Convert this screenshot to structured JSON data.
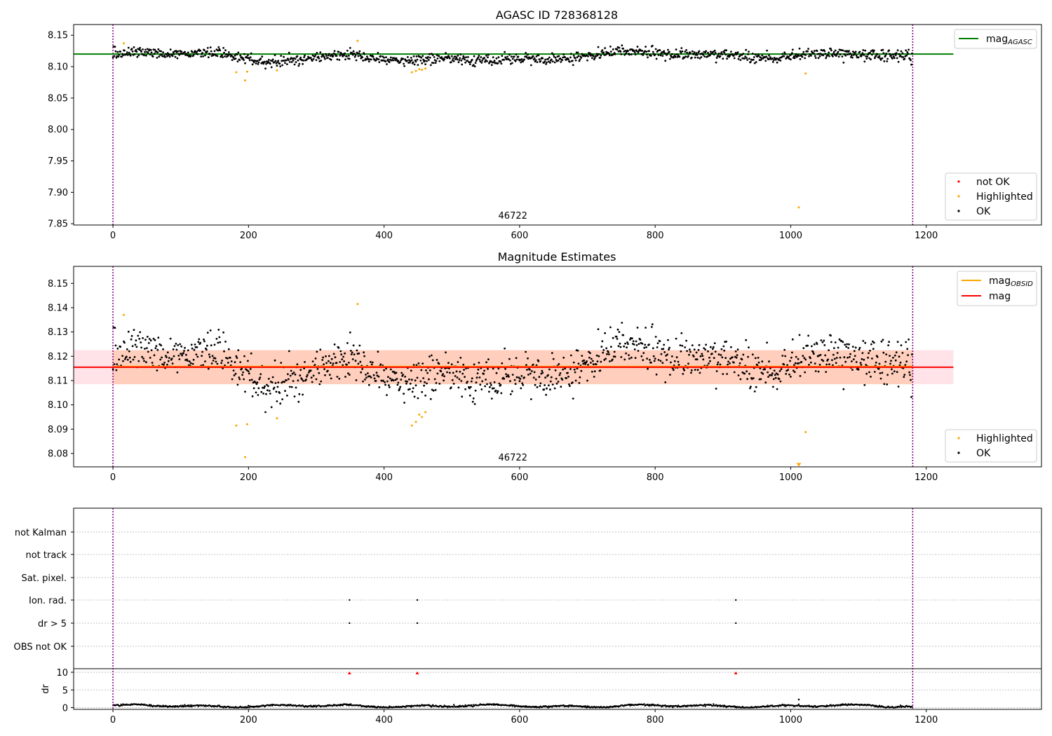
{
  "colors": {
    "ok": "#000000",
    "highlighted": "#ffa500",
    "not_ok": "#ff0000",
    "mag_agasc": "#008000",
    "mag_obsid": "#ffa500",
    "mag": "#ff0000",
    "band_obsid": "#ffb38a",
    "band_mag": "#ffc0cb",
    "marker_line": "#800080",
    "grid": "#b0b0b0"
  },
  "chart_data": [
    {
      "type": "scatter",
      "title": "AGASC ID 728368128",
      "xlim": [
        -58,
        1370
      ],
      "ylim": [
        7.848,
        8.167
      ],
      "x_ticks": [
        0,
        200,
        400,
        600,
        800,
        1000,
        1200
      ],
      "y_ticks": [
        7.85,
        7.9,
        7.95,
        8.0,
        8.05,
        8.1,
        8.15
      ],
      "y_tick_labels": [
        "7.85",
        "7.90",
        "7.95",
        "8.00",
        "8.05",
        "8.10",
        "8.15"
      ],
      "obsid_label": "46722",
      "obsid_label_x": 590,
      "vertical_markers": [
        0,
        1180
      ],
      "lines": [
        {
          "name": "mag_AGASC",
          "y": 8.12,
          "x": [
            -58,
            1240
          ]
        }
      ],
      "legend_lines": [
        {
          "label": "mag",
          "sub": "AGASC"
        }
      ],
      "legend_points": [
        {
          "label": "not OK"
        },
        {
          "label": "Highlighted"
        },
        {
          "label": "OK"
        }
      ],
      "ok_series": {
        "n": 1180,
        "mean": 8.116,
        "noise": 0.0045
      },
      "highlighted_points": [
        [
          16,
          8.137
        ],
        [
          182,
          8.091
        ],
        [
          195,
          8.078
        ],
        [
          198,
          8.092
        ],
        [
          242,
          8.094
        ],
        [
          361,
          8.141
        ],
        [
          441,
          8.091
        ],
        [
          447,
          8.093
        ],
        [
          452,
          8.096
        ],
        [
          456,
          8.095
        ],
        [
          461,
          8.097
        ],
        [
          1012,
          7.876
        ],
        [
          1022,
          8.089
        ]
      ]
    },
    {
      "type": "scatter",
      "title": "Magnitude Estimates",
      "xlim": [
        -58,
        1370
      ],
      "ylim": [
        8.0745,
        8.157
      ],
      "x_ticks": [
        0,
        200,
        400,
        600,
        800,
        1000,
        1200
      ],
      "y_ticks": [
        8.08,
        8.09,
        8.1,
        8.11,
        8.12,
        8.13,
        8.14,
        8.15
      ],
      "y_tick_labels": [
        "8.08",
        "8.09",
        "8.10",
        "8.11",
        "8.12",
        "8.13",
        "8.14",
        "8.15"
      ],
      "obsid_label": "46722",
      "obsid_label_x": 590,
      "vertical_markers": [
        0,
        1180
      ],
      "lines": [
        {
          "name": "mag_OBSID",
          "y": 8.1158,
          "x": [
            0,
            1180
          ]
        },
        {
          "name": "mag",
          "y": 8.1155,
          "x": [
            -58,
            1240
          ]
        }
      ],
      "bands": [
        {
          "name": "mag_OBSID",
          "y0": 8.1085,
          "y1": 8.1225,
          "x": [
            0,
            1180
          ]
        },
        {
          "name": "mag",
          "y0": 8.1085,
          "y1": 8.1225,
          "x": [
            -58,
            1240
          ]
        }
      ],
      "legend_lines": [
        {
          "label": "mag",
          "sub": "OBSID"
        },
        {
          "label": "mag",
          "sub": ""
        }
      ],
      "legend_points": [
        {
          "label": "Highlighted"
        },
        {
          "label": "OK"
        }
      ],
      "highlighted_points": [
        [
          16,
          8.137
        ],
        [
          182,
          8.0915
        ],
        [
          195,
          8.0785
        ],
        [
          198,
          8.092
        ],
        [
          242,
          8.0945
        ],
        [
          361,
          8.1415
        ],
        [
          441,
          8.0915
        ],
        [
          447,
          8.093
        ],
        [
          452,
          8.096
        ],
        [
          456,
          8.095
        ],
        [
          461,
          8.097
        ],
        [
          1022,
          8.0888
        ]
      ],
      "clipped_points": [
        [
          1012,
          8.0755
        ]
      ]
    },
    {
      "type": "scatter",
      "xlim": [
        -58,
        1370
      ],
      "x_ticks": [
        0,
        200,
        400,
        600,
        800,
        1000,
        1200
      ],
      "vertical_markers": [
        0,
        1180
      ],
      "flag_rows": [
        "OBS not OK",
        "dr > 5",
        "Ion. rad.",
        "Sat. pixel.",
        "not track",
        "not Kalman"
      ],
      "flag_points": [
        {
          "row": "Ion. rad.",
          "x": [
            349,
            449,
            919
          ]
        },
        {
          "row": "dr > 5",
          "x": [
            349,
            449,
            919
          ]
        }
      ],
      "dr_panel": {
        "ylabel": "dr",
        "ylim": [
          -0.5,
          11
        ],
        "y_ticks": [
          0,
          5,
          10
        ],
        "y_tick_labels": [
          "0",
          "5",
          "10"
        ],
        "clipped_points": [
          349,
          449,
          919
        ],
        "outlier_points": [
          [
            1012,
            2.3
          ]
        ],
        "noise_max": 1.0
      }
    }
  ]
}
